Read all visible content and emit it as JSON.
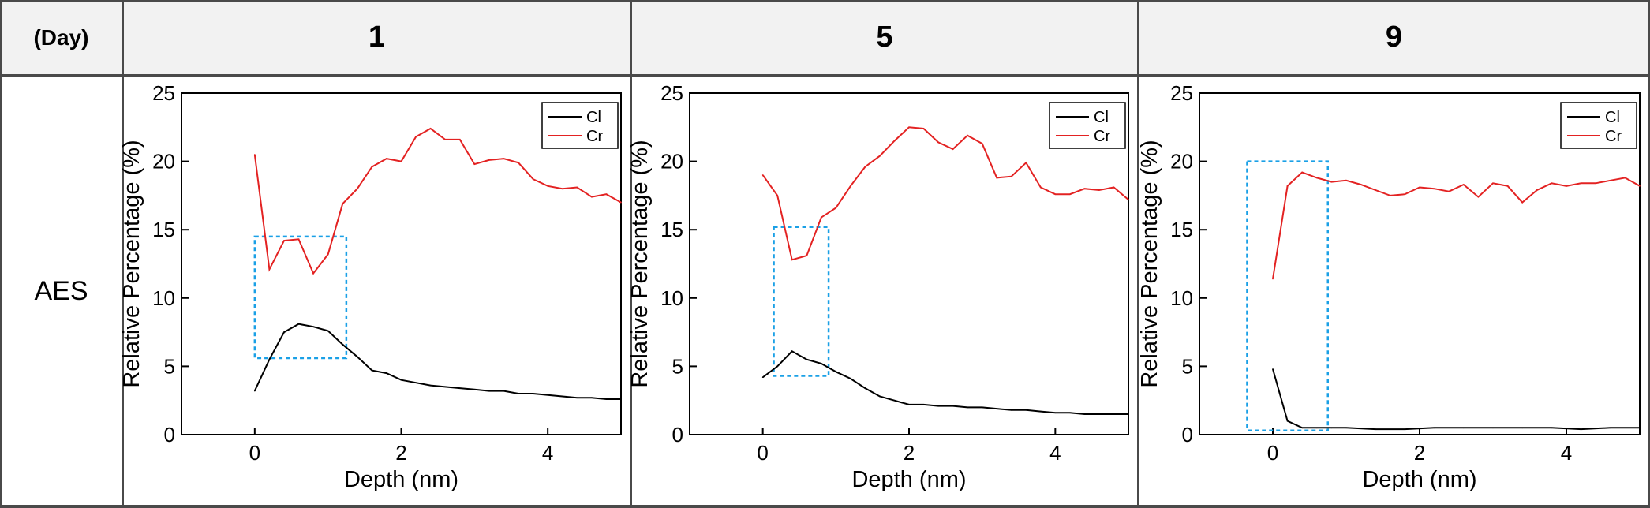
{
  "table": {
    "corner_label": "(Day)",
    "row_label": "AES",
    "days": [
      "1",
      "5",
      "9"
    ]
  },
  "colors": {
    "cl": "#000000",
    "cr": "#e32222",
    "box": "#1aa0e6",
    "header_bg": "#f2f2f2"
  },
  "chart_data": [
    {
      "type": "line",
      "day": "1",
      "xlabel": "Depth (nm)",
      "ylabel": "Relative Percentage (%)",
      "xlim": [
        -1,
        5
      ],
      "ylim": [
        0,
        25
      ],
      "xticks": [
        0,
        2,
        4
      ],
      "xtick_labels": [
        "0",
        "2",
        "4"
      ],
      "yticks": [
        0,
        5,
        10,
        15,
        20,
        25
      ],
      "ytick_labels": [
        "0",
        "5",
        "10",
        "15",
        "20",
        "25"
      ],
      "legend": [
        "Cl",
        "Cr"
      ],
      "highlight_box": {
        "x": [
          0,
          1.25
        ],
        "y": [
          5.6,
          14.5
        ]
      },
      "series": [
        {
          "name": "Cl",
          "x": [
            0,
            0.2,
            0.4,
            0.6,
            0.8,
            1.0,
            1.2,
            1.4,
            1.6,
            1.8,
            2.0,
            2.2,
            2.4,
            2.6,
            2.8,
            3.0,
            3.2,
            3.4,
            3.6,
            3.8,
            4.0,
            4.2,
            4.4,
            4.6,
            4.8,
            5.0
          ],
          "values": [
            3.2,
            5.5,
            7.5,
            8.1,
            7.9,
            7.6,
            6.6,
            5.7,
            4.7,
            4.5,
            4.0,
            3.8,
            3.6,
            3.5,
            3.4,
            3.3,
            3.2,
            3.2,
            3.0,
            3.0,
            2.9,
            2.8,
            2.7,
            2.7,
            2.6,
            2.6
          ]
        },
        {
          "name": "Cr",
          "x": [
            0,
            0.2,
            0.4,
            0.6,
            0.8,
            1.0,
            1.2,
            1.4,
            1.6,
            1.8,
            2.0,
            2.2,
            2.4,
            2.6,
            2.8,
            3.0,
            3.2,
            3.4,
            3.6,
            3.8,
            4.0,
            4.2,
            4.4,
            4.6,
            4.8,
            5.0
          ],
          "values": [
            20.5,
            12.1,
            14.2,
            14.3,
            11.8,
            13.2,
            16.9,
            18.0,
            19.6,
            20.2,
            20.0,
            21.8,
            22.4,
            21.6,
            21.6,
            19.8,
            20.1,
            20.2,
            19.9,
            18.7,
            18.2,
            18.0,
            18.1,
            17.4,
            17.6,
            17.0
          ]
        }
      ]
    },
    {
      "type": "line",
      "day": "5",
      "xlabel": "Depth (nm)",
      "ylabel": "Relative Percentage (%)",
      "xlim": [
        -1,
        5
      ],
      "ylim": [
        0,
        25
      ],
      "xticks": [
        0,
        2,
        4
      ],
      "xtick_labels": [
        "0",
        "2",
        "4"
      ],
      "yticks": [
        0,
        5,
        10,
        15,
        20,
        25
      ],
      "ytick_labels": [
        "0",
        "5",
        "10",
        "15",
        "20",
        "25"
      ],
      "legend": [
        "Cl",
        "Cr"
      ],
      "highlight_box": {
        "x": [
          0.15,
          0.9
        ],
        "y": [
          4.3,
          15.2
        ]
      },
      "series": [
        {
          "name": "Cl",
          "x": [
            0,
            0.2,
            0.4,
            0.6,
            0.8,
            1.0,
            1.2,
            1.4,
            1.6,
            1.8,
            2.0,
            2.2,
            2.4,
            2.6,
            2.8,
            3.0,
            3.2,
            3.4,
            3.6,
            3.8,
            4.0,
            4.2,
            4.4,
            4.6,
            4.8,
            5.0
          ],
          "values": [
            4.2,
            5.0,
            6.1,
            5.5,
            5.2,
            4.6,
            4.1,
            3.4,
            2.8,
            2.5,
            2.2,
            2.2,
            2.1,
            2.1,
            2.0,
            2.0,
            1.9,
            1.8,
            1.8,
            1.7,
            1.6,
            1.6,
            1.5,
            1.5,
            1.5,
            1.5
          ]
        },
        {
          "name": "Cr",
          "x": [
            0,
            0.2,
            0.4,
            0.6,
            0.8,
            1.0,
            1.2,
            1.4,
            1.6,
            1.8,
            2.0,
            2.2,
            2.4,
            2.6,
            2.8,
            3.0,
            3.2,
            3.4,
            3.6,
            3.8,
            4.0,
            4.2,
            4.4,
            4.6,
            4.8,
            5.0
          ],
          "values": [
            19.0,
            17.5,
            12.8,
            13.1,
            15.9,
            16.6,
            18.2,
            19.6,
            20.4,
            21.5,
            22.5,
            22.4,
            21.4,
            20.9,
            21.9,
            21.3,
            18.8,
            18.9,
            19.9,
            18.1,
            17.6,
            17.6,
            18.0,
            17.9,
            18.1,
            17.2
          ]
        }
      ]
    },
    {
      "type": "line",
      "day": "9",
      "xlabel": "Depth (nm)",
      "ylabel": "Relative Percentage (%)",
      "xlim": [
        -1,
        5
      ],
      "ylim": [
        0,
        25
      ],
      "xticks": [
        0,
        2,
        4
      ],
      "xtick_labels": [
        "0",
        "2",
        "4"
      ],
      "yticks": [
        0,
        5,
        10,
        15,
        20,
        25
      ],
      "ytick_labels": [
        "0",
        "5",
        "10",
        "15",
        "20",
        "25"
      ],
      "legend": [
        "Cl",
        "Cr"
      ],
      "highlight_box": {
        "x": [
          -0.35,
          0.75
        ],
        "y": [
          0.3,
          20.0
        ]
      },
      "series": [
        {
          "name": "Cl",
          "x": [
            0,
            0.2,
            0.4,
            0.6,
            0.8,
            1.0,
            1.4,
            1.8,
            2.2,
            2.6,
            3.0,
            3.4,
            3.8,
            4.2,
            4.6,
            5.0
          ],
          "values": [
            4.8,
            1.0,
            0.5,
            0.5,
            0.5,
            0.5,
            0.4,
            0.4,
            0.5,
            0.5,
            0.5,
            0.5,
            0.5,
            0.4,
            0.5,
            0.5
          ]
        },
        {
          "name": "Cr",
          "x": [
            0,
            0.2,
            0.4,
            0.6,
            0.8,
            1.0,
            1.2,
            1.4,
            1.6,
            1.8,
            2.0,
            2.2,
            2.4,
            2.6,
            2.8,
            3.0,
            3.2,
            3.4,
            3.6,
            3.8,
            4.0,
            4.2,
            4.4,
            4.6,
            4.8,
            5.0
          ],
          "values": [
            11.4,
            18.2,
            19.2,
            18.8,
            18.5,
            18.6,
            18.3,
            17.9,
            17.5,
            17.6,
            18.1,
            18.0,
            17.8,
            18.3,
            17.4,
            18.4,
            18.2,
            17.0,
            17.9,
            18.4,
            18.2,
            18.4,
            18.4,
            18.6,
            18.8,
            18.2
          ]
        }
      ]
    }
  ]
}
